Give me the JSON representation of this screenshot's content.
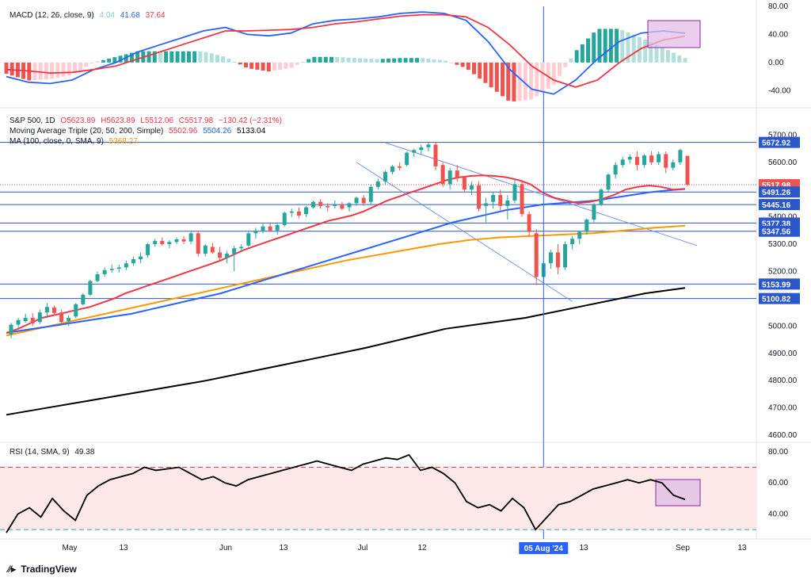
{
  "macd": {
    "title": "MACD (12, 26, close, 9)",
    "histogram_value": "4.04",
    "macd_value": "41.68",
    "signal_value": "37.64",
    "axis_ticks": [
      "80.00",
      "40.00",
      "0.00",
      "-40.00"
    ]
  },
  "price": {
    "symbol_line": "S&P 500, 1D",
    "open": "O5623.89",
    "high": "H5623.89",
    "low": "L5512.06",
    "close": "C5517.98",
    "change": "−130.42 (−2.31%)",
    "ma_triple_title": "Moving Average Triple (20, 50, 200, Simple)",
    "ma20_value": "5502.96",
    "ma50_value": "5504.26",
    "ma200_value": "5133.04",
    "ma100_title": "MA (100, close, 0, SMA, 9)",
    "ma100_value": "5368.27",
    "axis_ticks": [
      "5700.00",
      "5600.00",
      "5500.00",
      "5400.00",
      "5300.00",
      "5200.00",
      "5100.00",
      "5000.00",
      "4900.00",
      "4800.00",
      "4700.00",
      "4600.00"
    ],
    "level_tags": [
      "5672.92",
      "5517.98",
      "5491.26",
      "5445.16",
      "5377.38",
      "5347.56",
      "5153.99",
      "5100.82"
    ]
  },
  "rsi": {
    "title": "RSI (14, SMA, 9)",
    "value": "49.38",
    "axis_ticks": [
      "80.00",
      "60.00",
      "40.00"
    ]
  },
  "time_axis": {
    "labels": [
      "May",
      "13",
      "Jun",
      "13",
      "Jul",
      "12",
      "13",
      "Sep",
      "13"
    ],
    "crosshair_label": "05 Aug '24"
  },
  "brand": {
    "name": "TradingView",
    "icon": "tradingview-logo-icon"
  },
  "colors": {
    "up": "#26a69a",
    "down": "#ef5350",
    "ma20": "#f23645",
    "ma50": "#2962ff",
    "ma100": "#ff9800",
    "ma200": "#000000",
    "level": "#2a57c9",
    "macd": "#2962ff",
    "signal": "#f23645",
    "rsi": "#000000",
    "rsi_band": "#fce8e8",
    "highlight": "#e1bee7"
  },
  "chart_data": {
    "type": "candlestick",
    "symbol": "S&P 500",
    "timeframe": "1D",
    "x_labels": [
      "May",
      "13",
      "Jun",
      "13",
      "Jul",
      "12",
      "05 Aug '24",
      "13",
      "Sep",
      "13"
    ],
    "y_range": [
      4580,
      5730
    ],
    "candles": [
      [
        4970,
        5012,
        4955,
        5005
      ],
      [
        5005,
        5030,
        4990,
        5022
      ],
      [
        5018,
        5045,
        5012,
        5030
      ],
      [
        5030,
        5048,
        5000,
        5010
      ],
      [
        5015,
        5060,
        5008,
        5050
      ],
      [
        5050,
        5085,
        5030,
        5070
      ],
      [
        5068,
        5075,
        5040,
        5048
      ],
      [
        5050,
        5060,
        5010,
        5015
      ],
      [
        5018,
        5040,
        5000,
        5030
      ],
      [
        5035,
        5085,
        5028,
        5080
      ],
      [
        5080,
        5120,
        5075,
        5115
      ],
      [
        5115,
        5170,
        5110,
        5165
      ],
      [
        5165,
        5200,
        5160,
        5190
      ],
      [
        5190,
        5215,
        5180,
        5205
      ],
      [
        5205,
        5225,
        5195,
        5210
      ],
      [
        5210,
        5225,
        5195,
        5215
      ],
      [
        5215,
        5240,
        5205,
        5230
      ],
      [
        5230,
        5255,
        5220,
        5245
      ],
      [
        5245,
        5270,
        5230,
        5255
      ],
      [
        5260,
        5305,
        5250,
        5300
      ],
      [
        5300,
        5320,
        5290,
        5312
      ],
      [
        5312,
        5325,
        5295,
        5300
      ],
      [
        5300,
        5315,
        5285,
        5308
      ],
      [
        5308,
        5325,
        5300,
        5318
      ],
      [
        5318,
        5330,
        5300,
        5310
      ],
      [
        5310,
        5345,
        5300,
        5340
      ],
      [
        5340,
        5345,
        5255,
        5265
      ],
      [
        5265,
        5300,
        5255,
        5295
      ],
      [
        5290,
        5305,
        5265,
        5270
      ],
      [
        5270,
        5290,
        5240,
        5250
      ],
      [
        5250,
        5275,
        5230,
        5265
      ],
      [
        5265,
        5295,
        5200,
        5285
      ],
      [
        5285,
        5300,
        5270,
        5290
      ],
      [
        5295,
        5345,
        5290,
        5340
      ],
      [
        5340,
        5360,
        5320,
        5350
      ],
      [
        5350,
        5375,
        5340,
        5365
      ],
      [
        5365,
        5380,
        5345,
        5350
      ],
      [
        5350,
        5380,
        5335,
        5370
      ],
      [
        5370,
        5420,
        5365,
        5415
      ],
      [
        5415,
        5430,
        5400,
        5420
      ],
      [
        5420,
        5435,
        5395,
        5405
      ],
      [
        5410,
        5440,
        5400,
        5435
      ],
      [
        5435,
        5460,
        5430,
        5455
      ],
      [
        5455,
        5465,
        5430,
        5440
      ],
      [
        5440,
        5450,
        5420,
        5435
      ],
      [
        5440,
        5460,
        5430,
        5445
      ],
      [
        5445,
        5455,
        5425,
        5430
      ],
      [
        5435,
        5455,
        5420,
        5450
      ],
      [
        5450,
        5475,
        5440,
        5470
      ],
      [
        5470,
        5480,
        5440,
        5450
      ],
      [
        5455,
        5520,
        5445,
        5510
      ],
      [
        5510,
        5540,
        5500,
        5530
      ],
      [
        5530,
        5570,
        5520,
        5565
      ],
      [
        5565,
        5590,
        5555,
        5585
      ],
      [
        5585,
        5600,
        5570,
        5580
      ],
      [
        5590,
        5640,
        5585,
        5635
      ],
      [
        5635,
        5650,
        5620,
        5645
      ],
      [
        5645,
        5665,
        5630,
        5655
      ],
      [
        5655,
        5672,
        5640,
        5665
      ],
      [
        5665,
        5675,
        5570,
        5585
      ],
      [
        5590,
        5600,
        5510,
        5520
      ],
      [
        5520,
        5580,
        5500,
        5570
      ],
      [
        5570,
        5590,
        5530,
        5545
      ],
      [
        5545,
        5550,
        5490,
        5500
      ],
      [
        5500,
        5530,
        5480,
        5515
      ],
      [
        5515,
        5530,
        5420,
        5430
      ],
      [
        5440,
        5470,
        5380,
        5450
      ],
      [
        5455,
        5490,
        5430,
        5480
      ],
      [
        5480,
        5500,
        5420,
        5440
      ],
      [
        5440,
        5480,
        5390,
        5460
      ],
      [
        5460,
        5540,
        5450,
        5520
      ],
      [
        5520,
        5535,
        5400,
        5410
      ],
      [
        5410,
        5420,
        5330,
        5345
      ],
      [
        5340,
        5355,
        5150,
        5180
      ],
      [
        5180,
        5240,
        5160,
        5230
      ],
      [
        5230,
        5280,
        5210,
        5270
      ],
      [
        5270,
        5300,
        5190,
        5215
      ],
      [
        5215,
        5310,
        5205,
        5300
      ],
      [
        5300,
        5330,
        5280,
        5320
      ],
      [
        5320,
        5350,
        5300,
        5345
      ],
      [
        5345,
        5395,
        5335,
        5390
      ],
      [
        5390,
        5450,
        5380,
        5445
      ],
      [
        5445,
        5505,
        5440,
        5500
      ],
      [
        5500,
        5560,
        5490,
        5555
      ],
      [
        5555,
        5600,
        5540,
        5590
      ],
      [
        5590,
        5620,
        5580,
        5610
      ],
      [
        5610,
        5630,
        5595,
        5620
      ],
      [
        5620,
        5640,
        5570,
        5590
      ],
      [
        5590,
        5630,
        5580,
        5625
      ],
      [
        5625,
        5640,
        5590,
        5600
      ],
      [
        5600,
        5640,
        5590,
        5630
      ],
      [
        5630,
        5640,
        5560,
        5580
      ],
      [
        5580,
        5610,
        5570,
        5600
      ],
      [
        5600,
        5650,
        5590,
        5645
      ],
      [
        5623.89,
        5623.89,
        5512.06,
        5517.98
      ]
    ],
    "ma20": [
      4975,
      4990,
      5010,
      5030,
      5040,
      5050,
      5060,
      5070,
      5085,
      5100,
      5120,
      5135,
      5150,
      5165,
      5180,
      5195,
      5210,
      5225,
      5240,
      5260,
      5280,
      5295,
      5310,
      5325,
      5340,
      5355,
      5370,
      5385,
      5395,
      5405,
      5420,
      5440,
      5460,
      5475,
      5490,
      5505,
      5520,
      5535,
      5545,
      5550,
      5552,
      5550,
      5545,
      5535,
      5520,
      5490,
      5470,
      5460,
      5450,
      5455,
      5465,
      5480,
      5500,
      5510,
      5515,
      5510,
      5500,
      5503
    ],
    "ma50": [
      4975,
      4985,
      4995,
      5005,
      5015,
      5025,
      5035,
      5045,
      5060,
      5075,
      5090,
      5105,
      5120,
      5140,
      5160,
      5180,
      5200,
      5220,
      5240,
      5260,
      5280,
      5300,
      5320,
      5340,
      5360,
      5380,
      5395,
      5410,
      5425,
      5435,
      5445,
      5450,
      5455,
      5460,
      5470,
      5480,
      5490,
      5497,
      5502
    ],
    "ma100": [
      4965,
      4990,
      5015,
      5040,
      5065,
      5090,
      5115,
      5140,
      5165,
      5190,
      5215,
      5240,
      5260,
      5280,
      5300,
      5315,
      5325,
      5330,
      5335,
      5340,
      5350,
      5360,
      5368
    ],
    "ma200": [
      4675,
      4700,
      4725,
      4750,
      4775,
      4800,
      4830,
      4860,
      4890,
      4920,
      4955,
      4990,
      5010,
      5030,
      5060,
      5090,
      5120,
      5140
    ],
    "rsi": [
      28,
      40,
      44,
      38,
      50,
      42,
      36,
      52,
      58,
      62,
      64,
      66,
      70,
      68,
      69,
      70,
      66,
      62,
      64,
      60,
      58,
      62,
      64,
      66,
      68,
      70,
      72,
      74,
      72,
      70,
      68,
      72,
      74,
      76,
      75,
      78,
      68,
      70,
      66,
      60,
      48,
      44,
      46,
      42,
      50,
      44,
      30,
      38,
      46,
      48,
      52,
      56,
      58,
      60,
      62,
      60,
      62,
      60,
      52,
      49.38
    ],
    "macd_line": [
      -20,
      -28,
      -30,
      -25,
      -10,
      0,
      15,
      25,
      35,
      45,
      50,
      40,
      38,
      42,
      55,
      60,
      62,
      65,
      70,
      72,
      70,
      60,
      30,
      -10,
      -38,
      -45,
      -25,
      5,
      30,
      42,
      45,
      41.68
    ],
    "signal_line": [
      -10,
      -12,
      -15,
      -14,
      -10,
      -5,
      5,
      15,
      25,
      35,
      45,
      45,
      46,
      47,
      50,
      55,
      58,
      62,
      66,
      68,
      68,
      65,
      50,
      25,
      -5,
      -25,
      -35,
      -25,
      0,
      20,
      32,
      37.64
    ],
    "histogram_last": 4.04,
    "rsi_levels": [
      70,
      30
    ],
    "macd_range": [
      -60,
      80
    ],
    "rsi_range": [
      25,
      85
    ]
  }
}
